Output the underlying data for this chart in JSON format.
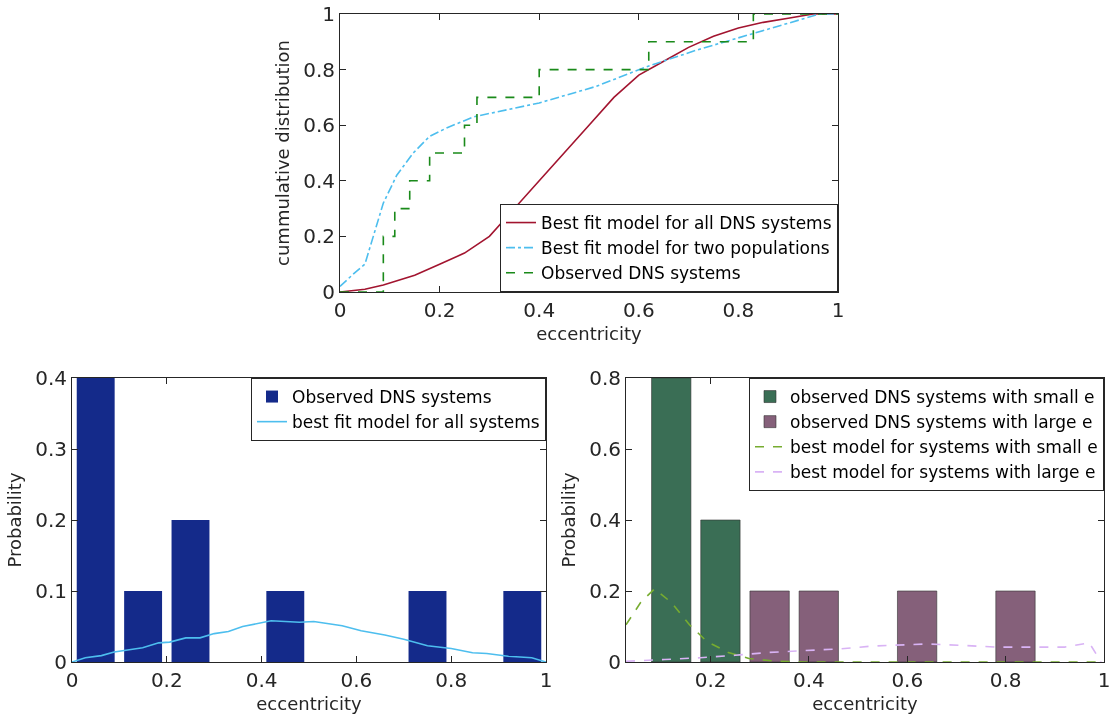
{
  "chart_data": [
    {
      "type": "line",
      "xlabel": "eccentricity",
      "ylabel": "cummulative distribution",
      "xlim": [
        0,
        1
      ],
      "ylim": [
        0,
        1
      ],
      "xticks": [
        0,
        0.2,
        0.4,
        0.6,
        0.8,
        1
      ],
      "yticks": [
        0,
        0.2,
        0.4,
        0.6,
        0.8,
        1
      ],
      "grid": false,
      "legend": "bottom right",
      "marker": "none",
      "series": [
        {
          "name": "Best fit model for all DNS systems",
          "color": "#a2142f",
          "line_style": "solid",
          "x": [
            0,
            0.05,
            0.087,
            0.15,
            0.2,
            0.25,
            0.3,
            0.4,
            0.45,
            0.5,
            0.55,
            0.6,
            0.65,
            0.7,
            0.75,
            0.8,
            0.85,
            0.9,
            0.95,
            1
          ],
          "values": [
            0,
            0.01,
            0.025,
            0.06,
            0.1,
            0.14,
            0.2,
            0.4,
            0.5,
            0.6,
            0.7,
            0.78,
            0.83,
            0.88,
            0.92,
            0.95,
            0.97,
            0.985,
            1,
            1
          ]
        },
        {
          "name": "Best fit model for two populations",
          "color": "#4dbeee",
          "line_style": "dashdot",
          "x": [
            0,
            0.03,
            0.05,
            0.087,
            0.114,
            0.147,
            0.18,
            0.214,
            0.268,
            0.4,
            0.515,
            0.615,
            0.716,
            0.83,
            0.963,
            1
          ],
          "values": [
            0.02,
            0.07,
            0.1,
            0.32,
            0.42,
            0.5,
            0.56,
            0.59,
            0.63,
            0.68,
            0.74,
            0.81,
            0.87,
            0.93,
            1,
            1
          ]
        },
        {
          "name": "Observed DNS systems",
          "type": "step",
          "color": "#1a8a1a",
          "line_style": "dashed",
          "x": [
            0,
            0.087,
            0.11,
            0.14,
            0.18,
            0.25,
            0.275,
            0.4,
            0.62,
            0.83,
            1
          ],
          "values": [
            0,
            0.2,
            0.3,
            0.4,
            0.5,
            0.6,
            0.7,
            0.8,
            0.9,
            1,
            1
          ]
        }
      ]
    },
    {
      "type": "histogram",
      "xlabel": "eccentricity",
      "ylabel": "Probability",
      "xlim": [
        0,
        1
      ],
      "ylim": [
        0,
        0.4
      ],
      "xticks": [
        0,
        0.2,
        0.4,
        0.6,
        0.8,
        1
      ],
      "yticks": [
        0,
        0.1,
        0.2,
        0.3,
        0.4
      ],
      "grid": false,
      "legend": "top right",
      "marker": "none",
      "bins": [
        0,
        0.1,
        0.2,
        0.3,
        0.4,
        0.5,
        0.6,
        0.7,
        0.8,
        0.9,
        1
      ],
      "series": [
        {
          "name": "Observed DNS systems",
          "color": "#142a8a",
          "values": [
            0.4,
            0.1,
            0.2,
            0,
            0.1,
            0,
            0,
            0.1,
            0,
            0.1
          ]
        },
        {
          "name": "best fit model for all systems",
          "type": "line",
          "color": "#4dbeee",
          "line_style": "solid",
          "x": [
            0,
            0.028,
            0.062,
            0.089,
            0.149,
            0.183,
            0.206,
            0.24,
            0.27,
            0.3,
            0.33,
            0.36,
            0.42,
            0.45,
            0.48,
            0.51,
            0.57,
            0.61,
            0.66,
            0.7,
            0.75,
            0.8,
            0.845,
            0.875,
            0.92,
            0.97,
            1
          ],
          "values": [
            0,
            0.006,
            0.009,
            0.014,
            0.02,
            0.027,
            0.028,
            0.034,
            0.034,
            0.04,
            0.043,
            0.05,
            0.058,
            0.057,
            0.056,
            0.057,
            0.051,
            0.044,
            0.038,
            0.032,
            0.023,
            0.019,
            0.013,
            0.012,
            0.008,
            0.006,
            0
          ]
        }
      ]
    },
    {
      "type": "bar",
      "xlabel": "eccentricity",
      "ylabel": "Probability",
      "xlim": [
        0.028,
        1
      ],
      "ylim": [
        0,
        0.8
      ],
      "xticks": [
        0.2,
        0.4,
        0.6,
        0.8,
        1
      ],
      "yticks": [
        0,
        0.2,
        0.4,
        0.6,
        0.8
      ],
      "grid": false,
      "legend": "top right",
      "marker": "none",
      "series": [
        {
          "name": "observed DNS systems with small e",
          "color": "#3a6e55",
          "x": [
            0.12,
            0.22
          ],
          "values": [
            0.8,
            0.4
          ]
        },
        {
          "name": "observed DNS systems with large e",
          "color": "#85607a",
          "x": [
            0.32,
            0.42,
            0.62,
            0.82
          ],
          "values": [
            0.2,
            0.2,
            0.2,
            0.2
          ]
        },
        {
          "name": "best model for systems with small e",
          "type": "line",
          "color": "#77ac30",
          "line_style": "dashed",
          "x": [
            0.028,
            0.058,
            0.086,
            0.12,
            0.157,
            0.193,
            0.236,
            0.278,
            0.335,
            0.39,
            0.6,
            0.8,
            1
          ],
          "values": [
            0.105,
            0.168,
            0.206,
            0.168,
            0.105,
            0.057,
            0.027,
            0.01,
            0.002,
            0,
            0,
            0,
            0
          ]
        },
        {
          "name": "best model for systems with large e",
          "type": "line",
          "color": "#d9b3f5",
          "line_style": "dashed",
          "x": [
            0.028,
            0.107,
            0.179,
            0.25,
            0.32,
            0.39,
            0.463,
            0.53,
            0.606,
            0.64,
            0.71,
            0.78,
            0.855,
            0.92,
            0.97,
            0.994
          ],
          "values": [
            0.002,
            0.007,
            0.012,
            0.019,
            0.027,
            0.032,
            0.037,
            0.045,
            0.049,
            0.051,
            0.047,
            0.042,
            0.042,
            0.042,
            0.054,
            0
          ]
        }
      ]
    }
  ]
}
